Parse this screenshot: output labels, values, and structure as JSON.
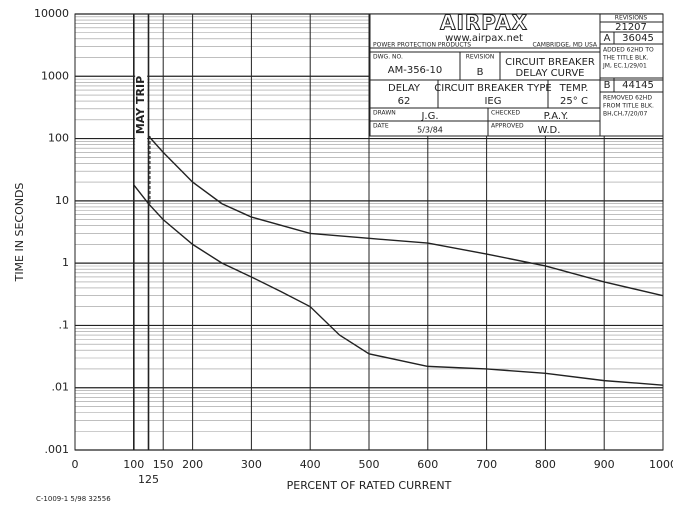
{
  "chart_data": {
    "type": "line",
    "y_label": "TIME IN SECONDS",
    "x_label": "PERCENT OF RATED CURRENT",
    "annotation": "MAY TRIP",
    "log_y": true,
    "grid": true,
    "xlim": [
      0,
      1000
    ],
    "xticks": [
      0,
      100,
      125,
      150,
      200,
      300,
      400,
      500,
      600,
      700,
      800,
      900,
      1000
    ],
    "ylim": [
      0.001,
      10000
    ],
    "yticks": [
      {
        "value": 0.001,
        "label": ".001"
      },
      {
        "value": 0.01,
        "label": ".01"
      },
      {
        "value": 0.1,
        "label": ".1"
      },
      1,
      10,
      100,
      1000,
      10000
    ],
    "series": [
      {
        "color": "#222222",
        "x": [
          125,
          150,
          200,
          250,
          300,
          400,
          500,
          600,
          700,
          800,
          900,
          1000
        ],
        "values": [
          110,
          60,
          20,
          9,
          5.5,
          3,
          2.5,
          2.1,
          1.4,
          0.9,
          0.5,
          0.3
        ]
      },
      {
        "color": "#222222",
        "x": [
          100,
          125,
          150,
          200,
          250,
          300,
          350,
          400,
          450,
          500,
          600,
          700,
          800,
          900,
          1000
        ],
        "values": [
          18,
          9,
          5,
          2,
          1,
          0.6,
          0.35,
          0.2,
          0.07,
          0.035,
          0.022,
          0.02,
          0.017,
          0.013,
          0.011
        ]
      }
    ]
  },
  "title_block": {
    "logo": "AIRPAX",
    "web": "www.airpax.net",
    "division": "POWER PROTECTION PRODUCTS",
    "location": "CAMBRIDGE, MD USA",
    "dwg_label": "DWG. NO.",
    "dwg": "AM-356-10",
    "revision_label": "REVISION",
    "revision": "B",
    "name_1": "CIRCUIT BREAKER",
    "name_2": "DELAY CURVE",
    "delay_label": "DELAY",
    "delay": "62",
    "type_label": "CIRCUIT BREAKER TYPE",
    "type": "IEG",
    "temp_label": "TEMP.",
    "temp": "25° C",
    "drawn_label": "DRAWN",
    "drawn": "J.G.",
    "checked_label": "CHECKED",
    "checked": "P.A.Y.",
    "date_label": "DATE",
    "date": "5/3/84",
    "approved_label": "APPROVED",
    "approved": "W.D.",
    "revisions_label": "REVISIONS",
    "rev_no": "21207",
    "rev_a": "A",
    "rev_a_no": "36045",
    "rev_a_note_1": "ADDED 62HD TO",
    "rev_a_note_2": "THE TITLE BLK.",
    "rev_a_note_3": "JM, EC.1/29/01",
    "rev_b": "B",
    "rev_b_no": "44145",
    "rev_b_note_1": "REMOVED 62HD",
    "rev_b_note_2": "FROM TITLE BLK.",
    "rev_b_note_3": "BH,CH,7/20/07"
  },
  "footer": "C-1009-1 5/98 32556"
}
